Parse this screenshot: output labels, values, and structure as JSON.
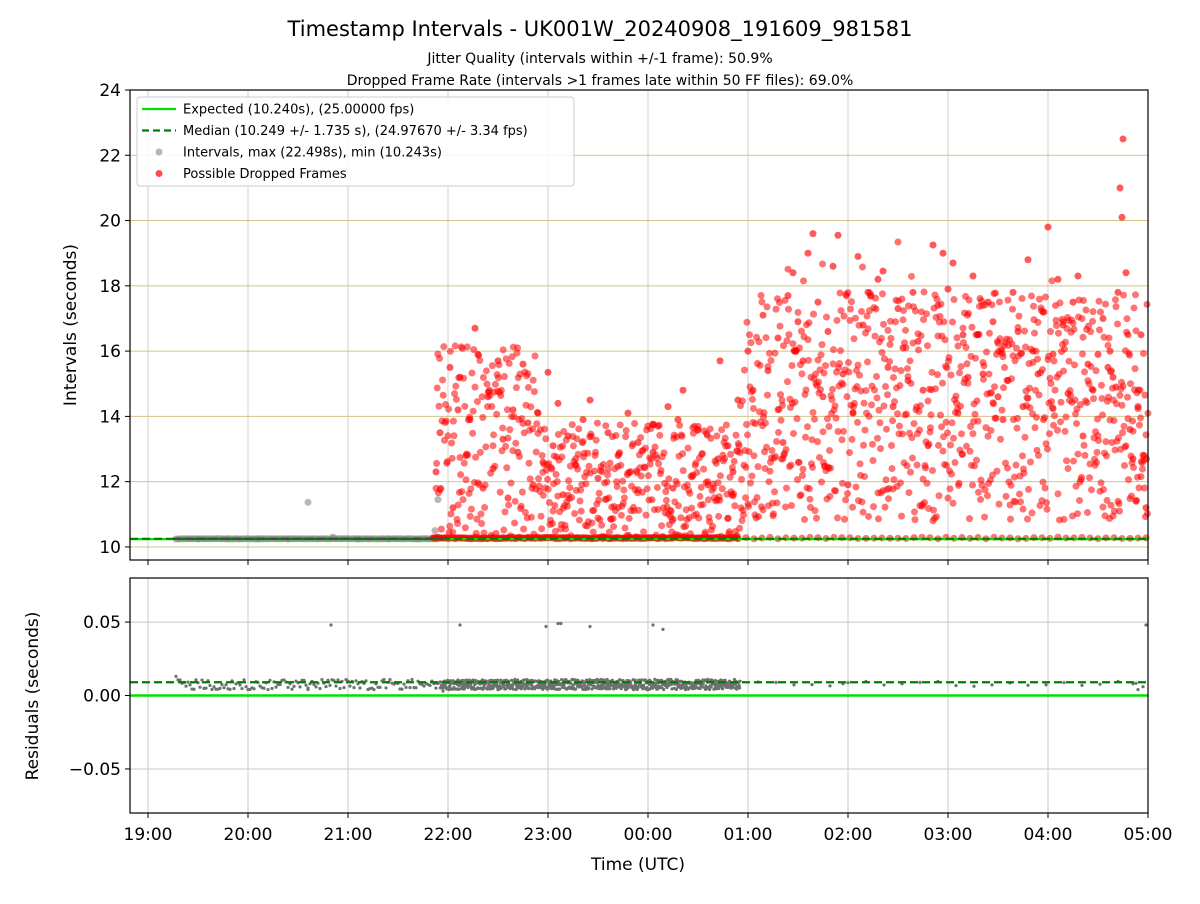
{
  "figure": {
    "title": "Timestamp Intervals - UK001W_20240908_191609_981581",
    "subtitle_1": "Jitter Quality (intervals within +/-1 frame): 50.9%",
    "subtitle_2": "Dropped Frame Rate (intervals >1 frames late within 50 FF files): 69.0%"
  },
  "chart_data": [
    {
      "type": "scatter",
      "panel": "intervals",
      "ylabel": "Intervals (seconds)",
      "xlabel": "",
      "ylim": [
        9.6,
        24
      ],
      "yticks": [
        "10",
        "12",
        "14",
        "16",
        "18",
        "20",
        "22",
        "24"
      ],
      "ytick_values": [
        10,
        12,
        14,
        16,
        18,
        20,
        22,
        24
      ],
      "grid": "horizontal",
      "grid_color": "#d4c48a",
      "legend_position": "top-left",
      "legend": [
        {
          "label": "Expected (10.240s), (25.00000 fps)",
          "style": "solid-line",
          "color": "#00e000"
        },
        {
          "label": "Median (10.249 +/- 1.735 s), (24.97670 +/- 3.34 fps)",
          "style": "dashed-line",
          "color": "#007f00"
        },
        {
          "label": "Intervals, max (22.498s), min (10.243s)",
          "style": "dot",
          "color": "#999999"
        },
        {
          "label": "Possible Dropped Frames",
          "style": "dot",
          "color": "#ff0000"
        }
      ],
      "expected_interval": 10.24,
      "median_interval": 10.249,
      "normal_intervals": {
        "color": "#888888",
        "x_hours": [
          19.28,
          19.5,
          19.8,
          20.1,
          20.4,
          20.6,
          20.85,
          21.1,
          21.4,
          21.7,
          21.87,
          21.9
        ],
        "y": [
          10.243,
          10.245,
          10.246,
          10.244,
          10.246,
          11.37,
          10.3,
          10.245,
          10.246,
          10.245,
          10.5,
          11.45
        ]
      },
      "dropped_frames": {
        "color": "#ff0000",
        "summary": "Dense scatter of dropped-frame intervals from about 21:50 to 05:00; values ~10.3-16.7 s between 22:00 and 00:55, ~10.3-19.8 s after 01:00, with a peak of 22.5 s near 04:45.",
        "points": [
          [
            21.88,
            12.3
          ],
          [
            21.92,
            13.5
          ],
          [
            22.02,
            15.5
          ],
          [
            22.05,
            11.2
          ],
          [
            22.1,
            14.2
          ],
          [
            22.12,
            15.2
          ],
          [
            22.18,
            12.8
          ],
          [
            22.22,
            13.9
          ],
          [
            22.27,
            16.7
          ],
          [
            22.3,
            15.9
          ],
          [
            22.35,
            11.8
          ],
          [
            22.4,
            14.6
          ],
          [
            22.45,
            12.4
          ],
          [
            22.5,
            15.7
          ],
          [
            22.55,
            13.3
          ],
          [
            22.6,
            11.5
          ],
          [
            22.65,
            14.2
          ],
          [
            22.7,
            12.9
          ],
          [
            22.75,
            15.6
          ],
          [
            22.8,
            13.8
          ],
          [
            22.85,
            11.9
          ],
          [
            22.9,
            14.1
          ],
          [
            22.95,
            12.6
          ],
          [
            23.0,
            15.35
          ],
          [
            23.05,
            13.1
          ],
          [
            23.1,
            14.4
          ],
          [
            23.15,
            11.6
          ],
          [
            23.2,
            13.4
          ],
          [
            23.28,
            12.5
          ],
          [
            23.35,
            13.9
          ],
          [
            23.42,
            14.5
          ],
          [
            23.5,
            12.1
          ],
          [
            23.6,
            13.5
          ],
          [
            23.7,
            12.8
          ],
          [
            23.8,
            14.1
          ],
          [
            23.9,
            13.2
          ],
          [
            24.05,
            12.9
          ],
          [
            24.1,
            13.7
          ],
          [
            24.2,
            14.3
          ],
          [
            24.25,
            11.8
          ],
          [
            24.3,
            13.9
          ],
          [
            24.35,
            14.8
          ],
          [
            24.45,
            12.2
          ],
          [
            24.5,
            13.6
          ],
          [
            24.6,
            11.9
          ],
          [
            24.7,
            12.7
          ],
          [
            24.72,
            15.7
          ],
          [
            24.8,
            13.1
          ],
          [
            24.85,
            12.3
          ],
          [
            24.9,
            14.5
          ],
          [
            25.0,
            16.0
          ],
          [
            25.05,
            14.8
          ],
          [
            25.15,
            17.1
          ],
          [
            25.2,
            15.4
          ],
          [
            25.3,
            16.4
          ],
          [
            25.35,
            13.2
          ],
          [
            25.4,
            17.7
          ],
          [
            25.45,
            18.4
          ],
          [
            25.5,
            16.9
          ],
          [
            25.55,
            15.7
          ],
          [
            25.6,
            19.0
          ],
          [
            25.65,
            19.6
          ],
          [
            25.7,
            17.5
          ],
          [
            25.75,
            14.6
          ],
          [
            25.8,
            16.6
          ],
          [
            25.85,
            18.6
          ],
          [
            25.9,
            19.55
          ],
          [
            25.95,
            15.3
          ],
          [
            26.0,
            11.9
          ],
          [
            26.05,
            14.1
          ],
          [
            26.1,
            18.9
          ],
          [
            26.15,
            16.8
          ],
          [
            26.2,
            17.8
          ],
          [
            26.3,
            18.2
          ],
          [
            26.35,
            18.45
          ],
          [
            26.4,
            15.5
          ],
          [
            26.45,
            14.3
          ],
          [
            26.5,
            17.3
          ],
          [
            26.55,
            16.1
          ],
          [
            26.6,
            15.1
          ],
          [
            26.65,
            17.8
          ],
          [
            26.7,
            16.3
          ],
          [
            26.75,
            14.8
          ],
          [
            26.8,
            13.1
          ],
          [
            26.85,
            19.25
          ],
          [
            26.9,
            17.4
          ],
          [
            26.95,
            19.0
          ],
          [
            27.0,
            17.9
          ],
          [
            27.05,
            18.7
          ],
          [
            27.1,
            14.1
          ],
          [
            27.15,
            16.5
          ],
          [
            27.2,
            15.2
          ],
          [
            27.25,
            18.3
          ],
          [
            27.3,
            16.5
          ],
          [
            27.35,
            15.3
          ],
          [
            27.4,
            17.5
          ],
          [
            27.45,
            16.9
          ],
          [
            27.5,
            14.6
          ],
          [
            27.55,
            13.9
          ],
          [
            27.6,
            15.1
          ],
          [
            27.65,
            17.8
          ],
          [
            27.7,
            16.6
          ],
          [
            27.75,
            14.3
          ],
          [
            27.8,
            18.8
          ],
          [
            27.85,
            16.0
          ],
          [
            27.9,
            15.3
          ],
          [
            27.95,
            17.2
          ],
          [
            28.0,
            19.8
          ],
          [
            28.05,
            15.9
          ],
          [
            28.1,
            18.2
          ],
          [
            28.15,
            16.8
          ],
          [
            28.2,
            14.7
          ],
          [
            28.25,
            17.5
          ],
          [
            28.3,
            18.3
          ],
          [
            28.35,
            13.4
          ],
          [
            28.4,
            15.6
          ],
          [
            28.45,
            14.8
          ],
          [
            28.5,
            15.9
          ],
          [
            28.55,
            17.0
          ],
          [
            28.6,
            15.5
          ],
          [
            28.62,
            16.0
          ],
          [
            28.65,
            15.2
          ],
          [
            28.68,
            14.9
          ],
          [
            28.7,
            17.8
          ],
          [
            28.72,
            21.0
          ],
          [
            28.74,
            20.1
          ],
          [
            28.75,
            22.5
          ],
          [
            28.78,
            18.4
          ],
          [
            28.8,
            16.5
          ],
          [
            28.82,
            13.6
          ],
          [
            28.85,
            12.7
          ],
          [
            28.88,
            11.4
          ],
          [
            28.9,
            14.3
          ],
          [
            28.93,
            16.5
          ],
          [
            28.96,
            12.8
          ],
          [
            28.98,
            11.2
          ]
        ],
        "baseline_band": {
          "x_range_hours": [
            21.85,
            29.0
          ],
          "y": 10.25
        }
      }
    },
    {
      "type": "scatter",
      "panel": "residuals",
      "ylabel": "Residuals (seconds)",
      "xlabel": "Time (UTC)",
      "ylim": [
        -0.08,
        0.08
      ],
      "yticks": [
        "−0.05",
        "0.00",
        "0.05"
      ],
      "ytick_values": [
        -0.05,
        0.0,
        0.05
      ],
      "grid": "both",
      "grid_color": "#c8c8c8",
      "expected_residual": 0.0,
      "median_residual": 0.009,
      "points_color": "#707070",
      "points": [
        [
          19.28,
          0.013
        ],
        [
          20.6,
          0.005
        ],
        [
          20.83,
          0.048
        ],
        [
          21.88,
          0.005
        ],
        [
          21.95,
          0.003
        ],
        [
          22.12,
          0.048
        ],
        [
          22.15,
          0.005
        ],
        [
          22.5,
          0.004
        ],
        [
          22.98,
          0.047
        ],
        [
          23.1,
          0.049
        ],
        [
          23.13,
          0.049
        ],
        [
          23.42,
          0.047
        ],
        [
          24.05,
          0.048
        ],
        [
          24.15,
          0.045
        ],
        [
          25.95,
          0.008
        ],
        [
          28.98,
          0.048
        ],
        [
          28.85,
          0.008
        ],
        [
          28.9,
          0.004
        ],
        [
          28.95,
          0.006
        ]
      ],
      "dense_band": {
        "x_range_hours": [
          19.3,
          24.92
        ],
        "y_range": [
          0.004,
          0.011
        ]
      },
      "sparse_band": {
        "x_range_hours": [
          24.92,
          29.0
        ],
        "y_range": [
          0.006,
          0.01
        ]
      }
    }
  ],
  "xaxis": {
    "xlim_hours": [
      18.82,
      29.0
    ],
    "tick_values_hours": [
      19,
      20,
      21,
      22,
      23,
      24,
      25,
      26,
      27,
      28,
      29
    ],
    "tick_labels": [
      "19:00",
      "20:00",
      "21:00",
      "22:00",
      "23:00",
      "00:00",
      "01:00",
      "02:00",
      "03:00",
      "04:00",
      "05:00"
    ]
  }
}
